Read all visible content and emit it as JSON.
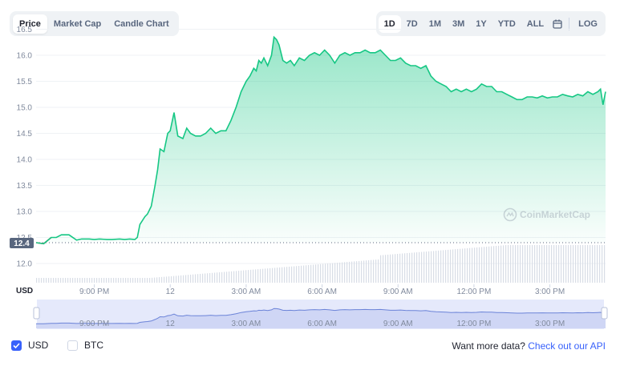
{
  "tabs_left": [
    {
      "label": "Price",
      "active": true
    },
    {
      "label": "Market Cap",
      "active": false
    },
    {
      "label": "Candle Chart",
      "active": false
    }
  ],
  "tabs_right": [
    {
      "label": "1D",
      "active": true
    },
    {
      "label": "7D",
      "active": false
    },
    {
      "label": "1M",
      "active": false
    },
    {
      "label": "3M",
      "active": false
    },
    {
      "label": "1Y",
      "active": false
    },
    {
      "label": "YTD",
      "active": false
    },
    {
      "label": "ALL",
      "active": false
    }
  ],
  "calendar_icon": "calendar-icon",
  "log_label": "LOG",
  "watermark": "CoinMarketCap",
  "colors": {
    "line": "#16c784",
    "line_down": "#ea3943",
    "accent": "#3861fb",
    "navigator_fill": "#dfe3f8",
    "navigator_line": "#6b83d8"
  },
  "chart_data": {
    "type": "area",
    "title": "",
    "xlabel": "",
    "ylabel": "",
    "currency_label": "USD",
    "ylim": [
      11.6,
      16.6
    ],
    "yticks": [
      12.0,
      12.5,
      13.0,
      13.5,
      14.0,
      14.5,
      15.0,
      15.5,
      16.0,
      16.5
    ],
    "x_range_hours": [
      -5.3,
      17.2
    ],
    "xticks": [
      {
        "label": "9:00 PM",
        "value": -3
      },
      {
        "label": "12",
        "value": 0
      },
      {
        "label": "3:00 AM",
        "value": 3
      },
      {
        "label": "6:00 AM",
        "value": 6
      },
      {
        "label": "9:00 AM",
        "value": 9
      },
      {
        "label": "12:00 PM",
        "value": 12
      },
      {
        "label": "3:00 PM",
        "value": 15
      }
    ],
    "open_price_label": "12.4",
    "open_price": 12.4,
    "series": [
      {
        "x": [
          -5.3,
          -5.0,
          -4.7,
          -4.5,
          -4.3,
          -4.0,
          -3.7,
          -3.5,
          -3.2,
          -3.0,
          -2.8,
          -2.5,
          -2.3,
          -2.0,
          -1.8,
          -1.6,
          -1.4,
          -1.3,
          -1.2,
          -1.0,
          -0.9,
          -0.75,
          -0.6,
          -0.5,
          -0.4,
          -0.25,
          -0.1,
          0.0,
          0.15,
          0.3,
          0.5,
          0.65,
          0.8,
          1.0,
          1.2,
          1.4,
          1.6,
          1.8,
          2.0,
          2.2,
          2.4,
          2.6,
          2.8,
          3.0,
          3.15,
          3.3,
          3.4,
          3.5,
          3.6,
          3.7,
          3.85,
          4.0,
          4.1,
          4.2,
          4.3,
          4.45,
          4.6,
          4.75,
          4.9,
          5.1,
          5.3,
          5.5,
          5.7,
          5.9,
          6.1,
          6.3,
          6.5,
          6.7,
          6.9,
          7.1,
          7.3,
          7.5,
          7.7,
          7.9,
          8.1,
          8.3,
          8.5,
          8.7,
          8.9,
          9.1,
          9.3,
          9.5,
          9.7,
          9.9,
          10.1,
          10.3,
          10.5,
          10.7,
          10.9,
          11.1,
          11.3,
          11.5,
          11.7,
          11.9,
          12.1,
          12.3,
          12.5,
          12.7,
          12.9,
          13.1,
          13.3,
          13.5,
          13.7,
          13.9,
          14.1,
          14.3,
          14.5,
          14.7,
          14.9,
          15.1,
          15.3,
          15.5,
          15.7,
          15.9,
          16.1,
          16.3,
          16.5,
          16.7,
          16.9,
          17.0,
          17.1,
          17.2
        ],
        "y": [
          12.4,
          12.38,
          12.5,
          12.5,
          12.55,
          12.55,
          12.45,
          12.47,
          12.47,
          12.46,
          12.47,
          12.46,
          12.46,
          12.47,
          12.46,
          12.47,
          12.46,
          12.5,
          12.75,
          12.9,
          12.95,
          13.1,
          13.5,
          13.8,
          14.2,
          14.15,
          14.5,
          14.55,
          14.9,
          14.45,
          14.4,
          14.6,
          14.5,
          14.45,
          14.45,
          14.5,
          14.6,
          14.5,
          14.55,
          14.55,
          14.75,
          15.0,
          15.3,
          15.5,
          15.6,
          15.75,
          15.7,
          15.9,
          15.85,
          15.95,
          15.8,
          16.0,
          16.35,
          16.3,
          16.2,
          15.9,
          15.85,
          15.9,
          15.8,
          15.95,
          15.9,
          16.0,
          16.05,
          16.0,
          16.1,
          16.0,
          15.85,
          16.0,
          16.05,
          16.0,
          16.05,
          16.05,
          16.1,
          16.05,
          16.05,
          16.1,
          16.0,
          15.9,
          15.9,
          15.95,
          15.85,
          15.8,
          15.8,
          15.75,
          15.8,
          15.6,
          15.5,
          15.45,
          15.4,
          15.3,
          15.35,
          15.3,
          15.35,
          15.3,
          15.35,
          15.45,
          15.4,
          15.4,
          15.3,
          15.3,
          15.25,
          15.2,
          15.15,
          15.15,
          15.2,
          15.2,
          15.18,
          15.22,
          15.18,
          15.2,
          15.2,
          15.25,
          15.22,
          15.2,
          15.25,
          15.22,
          15.3,
          15.25,
          15.3,
          15.35,
          15.05,
          15.3
        ]
      }
    ]
  },
  "bottom": {
    "usd_label": "USD",
    "btc_label": "BTC",
    "more_text": "Want more data?",
    "api_link": "Check out our API"
  }
}
